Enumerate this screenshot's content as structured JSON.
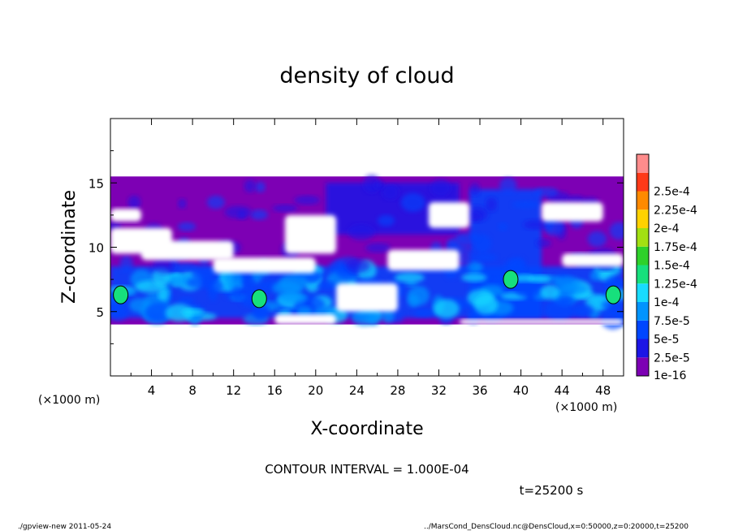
{
  "chart_data": {
    "type": "heatmap",
    "title": "density of cloud",
    "xlabel": "X-coordinate",
    "ylabel": "Z-coordinate",
    "x_unit": "(×1000 m)",
    "y_unit": "(×1000 m)",
    "xlim": [
      0,
      50
    ],
    "ylim": [
      0,
      20
    ],
    "x_ticks": [
      "4",
      "8",
      "12",
      "16",
      "20",
      "24",
      "28",
      "32",
      "36",
      "40",
      "44",
      "48"
    ],
    "y_ticks": [
      "5",
      "10",
      "15"
    ],
    "colorbar_labels": [
      "1e-16",
      "2.5e-5",
      "5e-5",
      "7.5e-5",
      "1e-4",
      "1.25e-4",
      "1.5e-4",
      "1.75e-4",
      "2e-4",
      "2.25e-4",
      "2.5e-4"
    ],
    "colorbar_colors": [
      "#7d00b4",
      "#1d16e6",
      "#0046ff",
      "#0094ff",
      "#18dcff",
      "#17e07c",
      "#2ed12a",
      "#a2e012",
      "#ffd200",
      "#ff8a00",
      "#ff3a18",
      "#ff8c8c"
    ],
    "contour_interval": "CONTOUR INTERVAL = 1.000E-04",
    "time_label": "t=25200 s",
    "cloud_bands": [
      {
        "x": [
          0,
          50
        ],
        "z": [
          4.0,
          15.5
        ],
        "level": 0
      },
      {
        "x": [
          0,
          50
        ],
        "z": [
          4.5,
          8.5
        ],
        "level": 2
      },
      {
        "x": [
          21,
          34
        ],
        "z": [
          11.0,
          15.0
        ],
        "level": 1
      },
      {
        "x": [
          35,
          42
        ],
        "z": [
          4.5,
          14.5
        ],
        "level": 2
      }
    ],
    "high_density_patches": [
      {
        "x": 1.0,
        "z": 6.3,
        "level": 5
      },
      {
        "x": 14.5,
        "z": 6.0,
        "level": 5
      },
      {
        "x": 39.0,
        "z": 7.5,
        "level": 5
      },
      {
        "x": 49.0,
        "z": 6.3,
        "level": 5
      }
    ]
  },
  "footer": {
    "left": "./gpview-new  2011-05-24",
    "right": "../MarsCond_DensCloud.nc@DensCloud,x=0:50000,z=0:20000,t=25200"
  }
}
